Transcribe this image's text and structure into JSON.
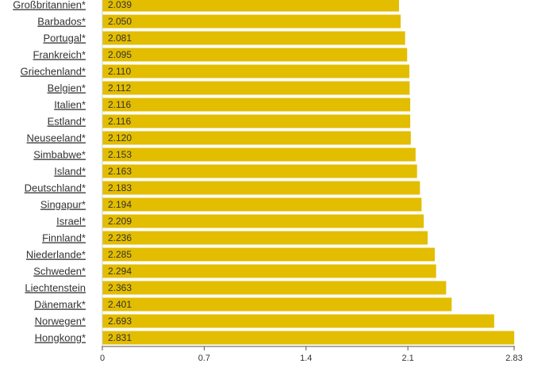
{
  "chart_data": {
    "type": "bar",
    "orientation": "horizontal",
    "categories": [
      "Großbritannien*",
      "Barbados*",
      "Portugal*",
      "Frankreich*",
      "Griechenland*",
      "Belgien*",
      "Italien*",
      "Estland*",
      "Neuseeland*",
      "Simbabwe*",
      "Island*",
      "Deutschland*",
      "Singapur*",
      "Israel*",
      "Finnland*",
      "Niederlande*",
      "Schweden*",
      "Liechtenstein",
      "Dänemark*",
      "Norwegen*",
      "Hongkong*"
    ],
    "values": [
      2.039,
      2.05,
      2.081,
      2.095,
      2.11,
      2.112,
      2.116,
      2.116,
      2.12,
      2.153,
      2.163,
      2.183,
      2.194,
      2.209,
      2.236,
      2.285,
      2.294,
      2.363,
      2.401,
      2.693,
      2.831
    ],
    "value_labels": [
      "2.039",
      "2.050",
      "2.081",
      "2.095",
      "2.110",
      "2.112",
      "2.116",
      "2.116",
      "2.120",
      "2.153",
      "2.163",
      "2.183",
      "2.194",
      "2.209",
      "2.236",
      "2.285",
      "2.294",
      "2.363",
      "2.401",
      "2.693",
      "2.831"
    ],
    "x_ticks": [
      0,
      0.7,
      1.4,
      2.1,
      2.83
    ],
    "x_tick_labels": [
      "0",
      "0.7",
      "1.4",
      "2.1",
      "2.83"
    ],
    "xlim": [
      0,
      2.83
    ],
    "bar_color": "#e3bd00",
    "grid": false
  }
}
